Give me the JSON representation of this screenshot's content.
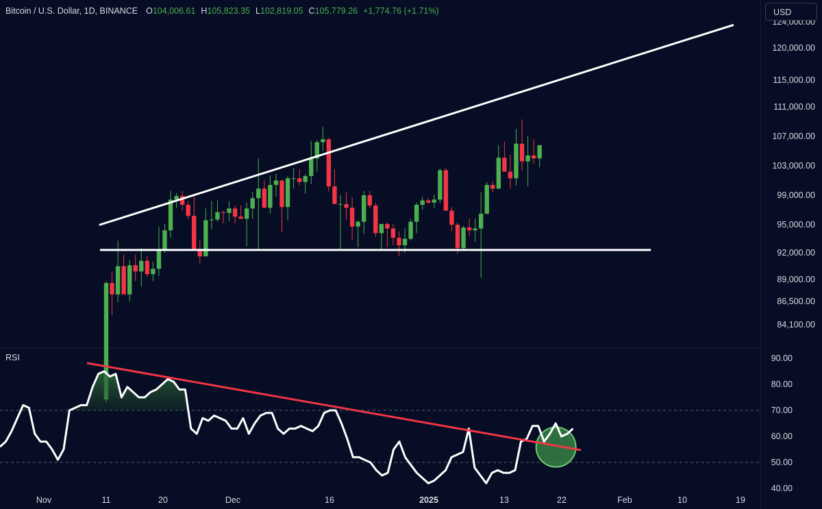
{
  "header": {
    "symbol": "Bitcoin / U.S. Dollar, 1D, BINANCE",
    "o_label": "O",
    "o_value": "104,006.61",
    "h_label": "H",
    "h_value": "105,823.35",
    "l_label": "L",
    "l_value": "102,819.05",
    "c_label": "C",
    "c_value": "105,779.26",
    "change": "+1,774.76 (+1.71%)"
  },
  "currency_button": "USD",
  "rsi_title": "RSI",
  "colors": {
    "background": "#060d24",
    "up": "#4caf50",
    "down": "#f23645",
    "trendline_white": "#ffffff",
    "trendline_red": "#f23645",
    "rsi_line": "#ffffff"
  },
  "chart_data": [
    {
      "type": "candlestick",
      "title": "Bitcoin / U.S. Dollar, 1D, BINANCE",
      "ylim": [
        82500,
        125000
      ],
      "y_ticks": [
        "120,000.00",
        "115,000.00",
        "111,000.00",
        "107,000.00",
        "103,000.00",
        "99,000.00",
        "95,000.00",
        "92,000.00",
        "89,000.00",
        "86,500.00",
        "84,100.00"
      ],
      "top_partial_tick": "124,000.00",
      "x_ticks": [
        "Nov",
        "11",
        "20",
        "Dec",
        "16",
        "2025",
        "13",
        "22",
        "Feb",
        "10",
        "19"
      ],
      "candles_ohlc": [
        [
          76400,
          88800,
          76100,
          88600
        ],
        [
          88600,
          89900,
          85100,
          87300
        ],
        [
          87300,
          93300,
          86400,
          90500
        ],
        [
          90500,
          91800,
          87700,
          87300
        ],
        [
          87300,
          91200,
          86500,
          90600
        ],
        [
          90600,
          91800,
          88800,
          89900
        ],
        [
          89900,
          92500,
          88200,
          91100
        ],
        [
          91100,
          91600,
          89300,
          89600
        ],
        [
          89600,
          91000,
          88800,
          90200
        ],
        [
          90200,
          94800,
          89400,
          92300
        ],
        [
          92300,
          95100,
          92000,
          94400
        ],
        [
          94400,
          99600,
          93600,
          98400
        ],
        [
          98400,
          99300,
          97300,
          98900
        ],
        [
          98900,
          99600,
          96900,
          97700
        ],
        [
          97700,
          98200,
          95700,
          96200
        ],
        [
          96200,
          98900,
          93200,
          92300
        ],
        [
          92300,
          93400,
          90800,
          91600
        ],
        [
          91600,
          97200,
          91600,
          95600
        ],
        [
          95600,
          98200,
          94500,
          95700
        ],
        [
          95700,
          98300,
          95400,
          96700
        ],
        [
          96700,
          96900,
          95200,
          96600
        ],
        [
          96600,
          98200,
          95500,
          97200
        ],
        [
          97200,
          97600,
          95200,
          96100
        ],
        [
          96100,
          97600,
          95800,
          95800
        ],
        [
          95800,
          98000,
          92700,
          97200
        ],
        [
          97200,
          99500,
          95800,
          98600
        ],
        [
          98600,
          104000,
          92300,
          99900
        ],
        [
          99900,
          101000,
          97800,
          97300
        ],
        [
          97300,
          101700,
          96500,
          100400
        ],
        [
          100400,
          101900,
          98800,
          101000
        ],
        [
          101000,
          101100,
          94200,
          97400
        ],
        [
          97400,
          101600,
          95600,
          101300
        ],
        [
          101300,
          102700,
          99900,
          101300
        ],
        [
          101300,
          102500,
          100300,
          100800
        ],
        [
          100800,
          101900,
          99200,
          101600
        ],
        [
          101600,
          106400,
          100500,
          104000
        ],
        [
          104000,
          106500,
          102200,
          106200
        ],
        [
          106200,
          108300,
          105000,
          106600
        ],
        [
          106600,
          106800,
          99500,
          100200
        ],
        [
          100200,
          102500,
          97900,
          97800
        ],
        [
          97800,
          99000,
          92400,
          97800
        ],
        [
          97800,
          99500,
          95700,
          97300
        ],
        [
          97300,
          98700,
          93400,
          94800
        ],
        [
          94800,
          95600,
          92600,
          95400
        ],
        [
          95400,
          99600,
          94000,
          99000
        ],
        [
          99000,
          99600,
          97200,
          97600
        ],
        [
          97600,
          98000,
          93700,
          94100
        ],
        [
          94100,
          94900,
          92300,
          95100
        ],
        [
          95100,
          95300,
          92600,
          94600
        ],
        [
          94600,
          95100,
          92800,
          93600
        ],
        [
          93600,
          94300,
          91600,
          92800
        ],
        [
          92800,
          94600,
          92000,
          93500
        ],
        [
          93500,
          95800,
          93300,
          95400
        ],
        [
          95400,
          98000,
          94100,
          97700
        ],
        [
          97700,
          98800,
          97000,
          98300
        ],
        [
          98300,
          98600,
          97800,
          98000
        ],
        [
          98000,
          99100,
          97300,
          98400
        ],
        [
          98400,
          102600,
          97900,
          102400
        ],
        [
          102400,
          102700,
          96900,
          96900
        ],
        [
          96900,
          97400,
          94300,
          95000
        ],
        [
          95000,
          95300,
          91900,
          92500
        ],
        [
          92500,
          94900,
          92300,
          94700
        ],
        [
          94700,
          95800,
          93800,
          94400
        ],
        [
          94400,
          95800,
          93200,
          94600
        ],
        [
          94600,
          99400,
          89200,
          96500
        ],
        [
          96500,
          100800,
          96400,
          100400
        ],
        [
          100400,
          100900,
          99400,
          99900
        ],
        [
          99900,
          105800,
          99800,
          104100
        ],
        [
          104100,
          106300,
          102300,
          102200
        ],
        [
          102200,
          104500,
          99900,
          101300
        ],
        [
          101300,
          108000,
          100300,
          106000
        ],
        [
          106000,
          109300,
          102300,
          103600
        ],
        [
          103600,
          107000,
          100200,
          104400
        ],
        [
          104400,
          106600,
          103300,
          104000
        ],
        [
          104000,
          105800,
          102800,
          105800
        ]
      ],
      "trendline_upper": {
        "from": {
          "candle": 0,
          "price": 95000
        },
        "to": {
          "candle": 107,
          "price": 123600
        }
      },
      "support_level": 92300
    },
    {
      "type": "line",
      "title": "RSI",
      "ylim": [
        40,
        90
      ],
      "y_ticks": [
        "90.00",
        "80.00",
        "70.00",
        "60.00",
        "50.00",
        "40.00"
      ],
      "levels": [
        70,
        50
      ],
      "values": [
        56,
        58,
        62,
        67,
        72,
        71,
        61,
        58,
        58,
        55,
        51,
        55,
        70,
        71,
        72,
        72,
        79,
        84,
        85,
        83,
        84,
        75,
        79,
        77,
        75,
        75,
        77,
        78,
        80,
        82,
        81,
        78,
        78,
        63,
        61,
        67,
        66,
        68,
        67,
        66,
        63,
        63,
        67,
        61,
        65,
        68,
        69,
        69,
        63,
        61,
        63,
        63,
        64,
        63,
        62,
        64,
        69,
        70,
        70,
        65,
        59,
        52,
        52,
        51,
        50,
        47,
        45,
        46,
        55,
        58,
        52,
        49,
        46,
        44,
        42,
        43,
        45,
        47,
        52,
        53,
        54,
        63,
        48,
        45,
        42,
        46,
        47,
        46,
        46,
        47,
        58,
        59,
        64,
        64,
        58,
        61,
        65,
        60,
        61,
        63
      ],
      "trendline": {
        "from": {
          "index": 16,
          "value": 88.5
        },
        "to": {
          "index": 103,
          "value": 55.5
        }
      },
      "highlight_circle": {
        "index": 97,
        "value": 58
      }
    }
  ]
}
